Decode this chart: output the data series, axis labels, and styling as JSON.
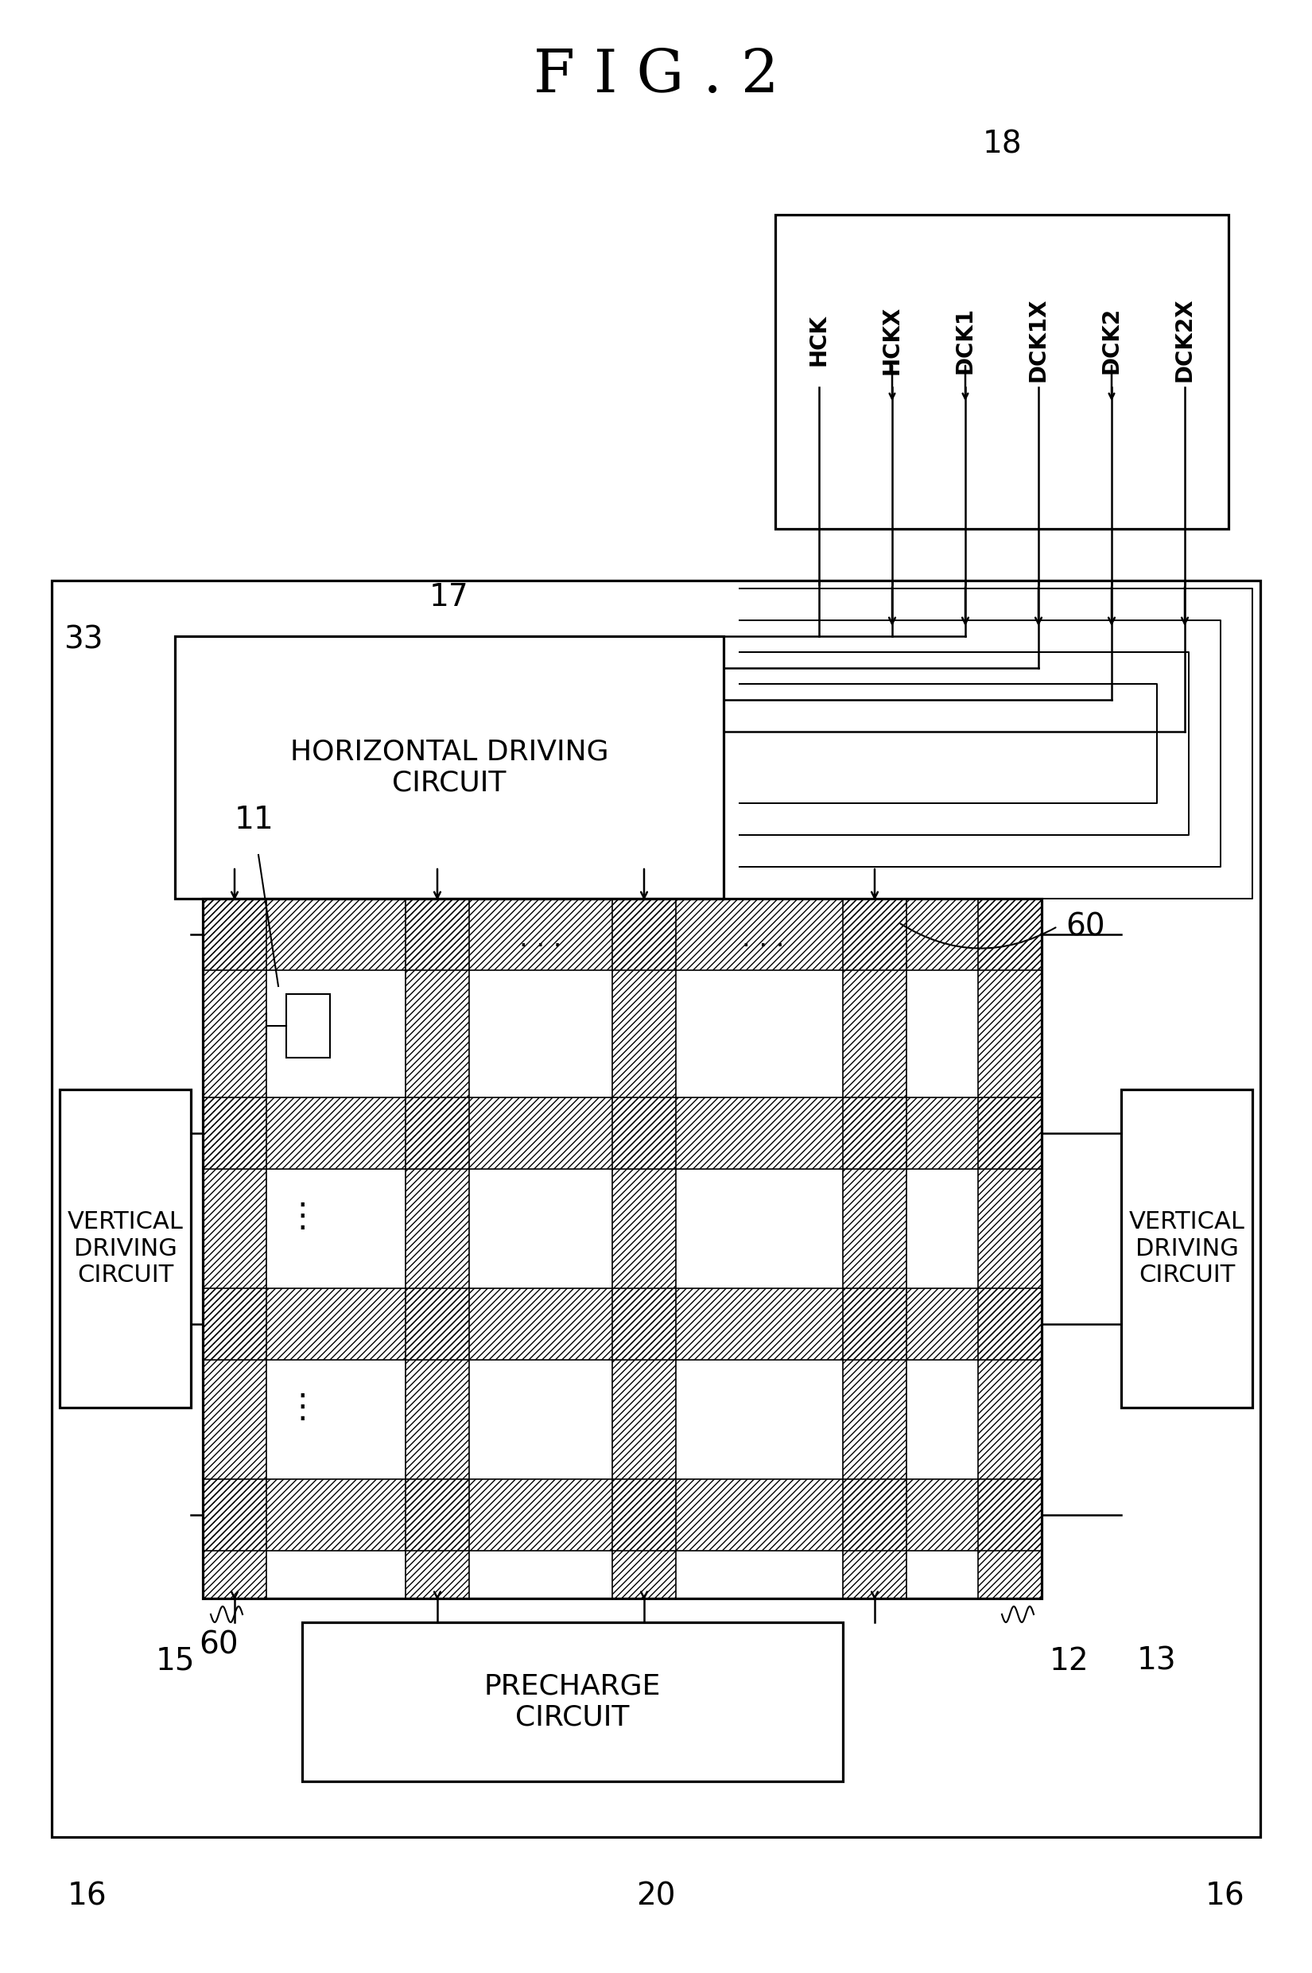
{
  "fig_width": 16.5,
  "fig_height": 24.81,
  "bg": "#ffffff",
  "title": "F I G . 2",
  "labels": {
    "18": "18",
    "17": "17",
    "33": "33",
    "20": "20",
    "11": "11",
    "60a": "60",
    "60b": "60",
    "12": "12",
    "13": "13",
    "15": "15",
    "16L": "16",
    "16R": "16",
    "hdc": "HORIZONTAL DRIVING\nCIRCUIT",
    "vdcL": "VERTICAL\nDRIVING\nCIRCUIT",
    "vdcR": "VERTICAL\nDRIVING\nCIRCUIT",
    "pc": "PRECHARGE\nCIRCUIT"
  },
  "sig_names": [
    "HCK",
    "HCKX",
    "DCK1",
    "DCK1X",
    "DCK2",
    "DCK2X"
  ]
}
